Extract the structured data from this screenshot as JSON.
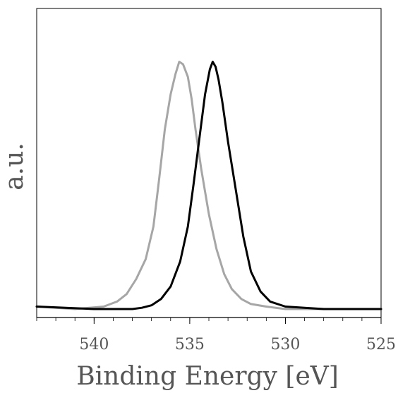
{
  "chart_data": {
    "type": "line",
    "title": "",
    "xlabel": "Binding Energy [eV]",
    "ylabel": "a.u.",
    "x_reversed": true,
    "xlim": [
      543,
      525
    ],
    "ylim": [
      -0.04,
      1.1
    ],
    "x_ticks": [
      540,
      535,
      530,
      525
    ],
    "x_tick_labels": [
      "540",
      "535",
      "530",
      "525"
    ],
    "y_ticks_shown": false,
    "grid": false,
    "legend": "none",
    "series": [
      {
        "color": "#a6a6a6",
        "x": [
          543,
          541,
          539.5,
          538.8,
          538.3,
          537.8,
          537.3,
          536.9,
          536.6,
          536.3,
          536.0,
          535.75,
          535.55,
          535.35,
          535.1,
          534.9,
          534.7,
          534.4,
          534.0,
          533.6,
          533.2,
          532.8,
          532.3,
          531.8,
          531.0,
          530.0,
          528,
          525
        ],
        "y": [
          0.01,
          0.0,
          0.01,
          0.03,
          0.06,
          0.12,
          0.2,
          0.33,
          0.52,
          0.72,
          0.86,
          0.94,
          0.99,
          0.98,
          0.93,
          0.84,
          0.72,
          0.56,
          0.38,
          0.24,
          0.14,
          0.08,
          0.04,
          0.02,
          0.01,
          0.0,
          0.0,
          0.0
        ]
      },
      {
        "color": "#000000",
        "x": [
          543,
          540,
          538,
          537.5,
          537.0,
          536.5,
          536.0,
          535.5,
          535.1,
          534.8,
          534.5,
          534.2,
          533.95,
          533.8,
          533.65,
          533.5,
          533.3,
          533.0,
          532.6,
          532.2,
          531.8,
          531.3,
          530.8,
          530.0,
          528,
          525
        ],
        "y": [
          0.01,
          0.0,
          0.0,
          0.005,
          0.015,
          0.04,
          0.09,
          0.19,
          0.33,
          0.5,
          0.68,
          0.86,
          0.96,
          0.99,
          0.97,
          0.92,
          0.83,
          0.67,
          0.48,
          0.29,
          0.15,
          0.07,
          0.03,
          0.01,
          0.0,
          0.0
        ]
      }
    ]
  }
}
